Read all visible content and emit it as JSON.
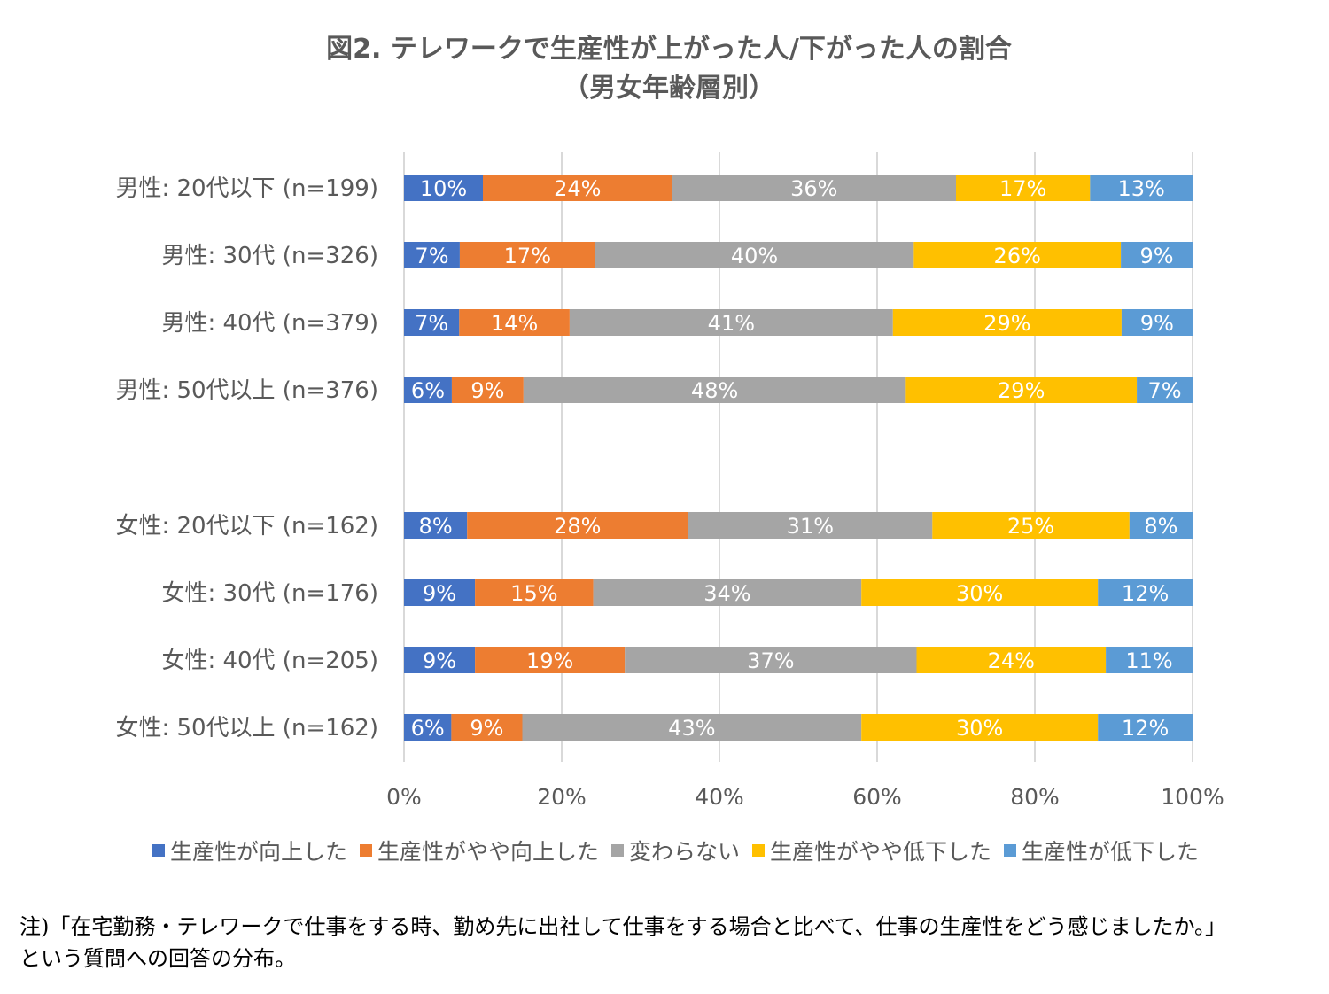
{
  "chart_data": {
    "type": "bar",
    "orientation": "horizontal",
    "stacked": "100%",
    "title": "図2. テレワークで生産性が上がった人/下がった人の割合",
    "subtitle": "（男女年齢層別）",
    "categories": [
      "男性: 20代以下 (n=199)",
      "男性: 30代 (n=326)",
      "男性: 40代 (n=379)",
      "男性: 50代以上 (n=376)",
      "女性: 20代以下 (n=162)",
      "女性: 30代 (n=176)",
      "女性: 40代 (n=205)",
      "女性: 50代以上 (n=162)"
    ],
    "series": [
      {
        "name": "生産性が向上した",
        "color": "#4472C4",
        "values": [
          10,
          7,
          7,
          6,
          8,
          9,
          9,
          6
        ]
      },
      {
        "name": "生産性がやや向上した",
        "color": "#ED7D31",
        "values": [
          24,
          17,
          14,
          9,
          28,
          15,
          19,
          9
        ]
      },
      {
        "name": "変わらない",
        "color": "#A5A5A5",
        "values": [
          36,
          40,
          41,
          48,
          31,
          34,
          37,
          43
        ]
      },
      {
        "name": "生産性がやや低下した",
        "color": "#FFC000",
        "values": [
          17,
          26,
          29,
          29,
          25,
          30,
          24,
          30
        ]
      },
      {
        "name": "生産性が低下した",
        "color": "#5B9BD5",
        "values": [
          13,
          9,
          9,
          7,
          8,
          12,
          11,
          12
        ]
      }
    ],
    "xlim": [
      0,
      100
    ],
    "xticks": [
      "0%",
      "20%",
      "40%",
      "60%",
      "80%",
      "100%"
    ],
    "grid": true,
    "legend_position": "bottom"
  },
  "note": {
    "line1": "注)「在宅勤務・テレワークで仕事をする時、勤め先に出社して仕事をする場合と比べて、仕事の生産性をどう感じましたか。」",
    "line2": "という質問への回答の分布。"
  }
}
